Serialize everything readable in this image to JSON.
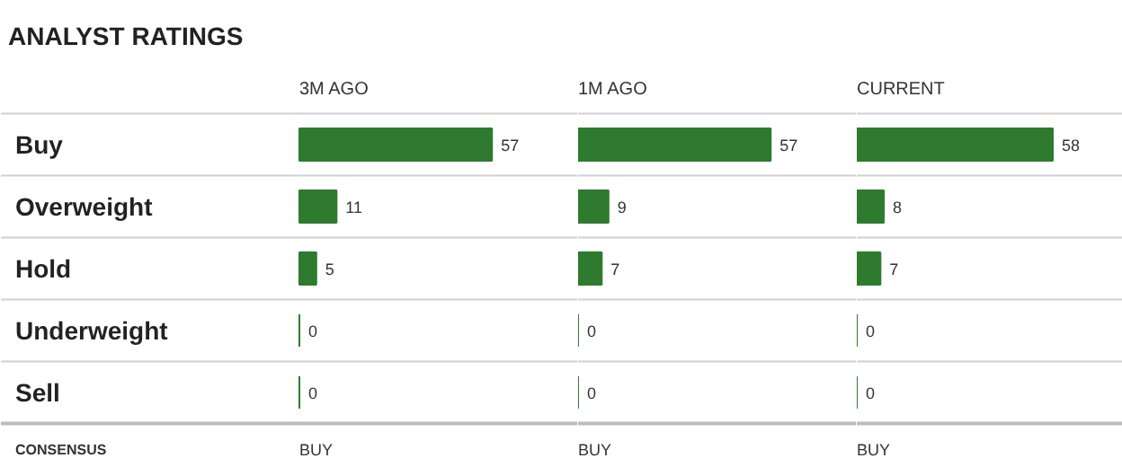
{
  "chart_data": [
    {
      "type": "bar",
      "orientation": "horizontal",
      "title": "ANALYST RATINGS",
      "subtitle": "3M AGO",
      "categories": [
        "Buy",
        "Overweight",
        "Hold",
        "Underweight",
        "Sell"
      ],
      "values": [
        57,
        11,
        5,
        0,
        0
      ],
      "color": "#2e7b30",
      "data_labels": true,
      "tick_labels": "y",
      "grid": "y",
      "annotations": [
        "CONSENSUS",
        "BUY"
      ]
    },
    {
      "type": "bar",
      "orientation": "horizontal",
      "subtitle": "1M AGO",
      "values": [
        57,
        9,
        7,
        0,
        0
      ],
      "color": "#2e7b30",
      "data_labels": true,
      "grid": "y",
      "annotations": [
        "BUY"
      ]
    },
    {
      "type": "bar",
      "orientation": "horizontal",
      "subtitle": "CURRENT",
      "values": [
        58,
        8,
        7,
        0,
        0
      ],
      "color": "#2e7b30",
      "data_labels": true,
      "grid": "y",
      "annotations": [
        "BUY"
      ]
    }
  ]
}
